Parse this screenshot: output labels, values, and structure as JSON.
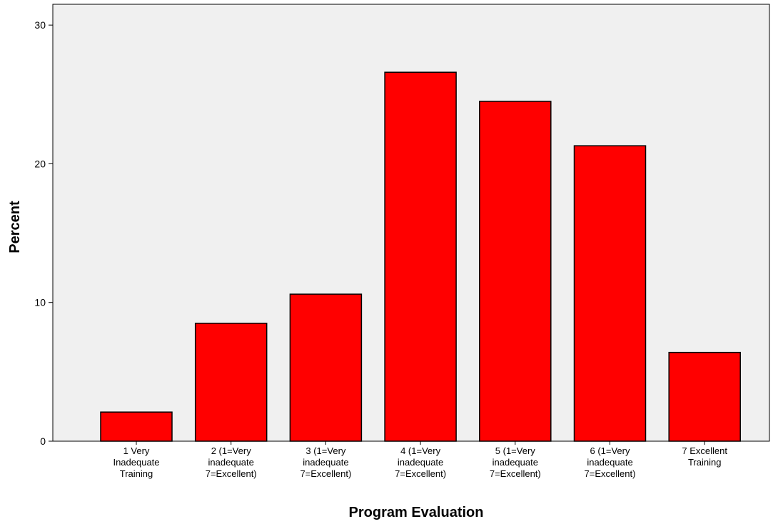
{
  "chart_data": {
    "type": "bar",
    "title": "",
    "xlabel": "Program Evaluation",
    "ylabel": "Percent",
    "ylim": [
      0,
      31.5
    ],
    "yticks": [
      0,
      10,
      20,
      30
    ],
    "grid": false,
    "categories": [
      [
        "1 Very",
        "Inadequate",
        "Training"
      ],
      [
        "2 (1=Very",
        "inadequate",
        "7=Excellent)"
      ],
      [
        "3 (1=Very",
        "inadequate",
        "7=Excellent)"
      ],
      [
        "4 (1=Very",
        "inadequate",
        "7=Excellent)"
      ],
      [
        "5 (1=Very",
        "inadequate",
        "7=Excellent)"
      ],
      [
        "6 (1=Very",
        "inadequate",
        "7=Excellent)"
      ],
      [
        "7 Excellent",
        "Training"
      ]
    ],
    "values": [
      2.1,
      8.5,
      10.6,
      26.6,
      24.5,
      21.3,
      6.4
    ],
    "colors": {
      "bar_fill": "#ff0000",
      "bar_stroke": "#000000",
      "plot_background": "#f0f0f0"
    }
  }
}
